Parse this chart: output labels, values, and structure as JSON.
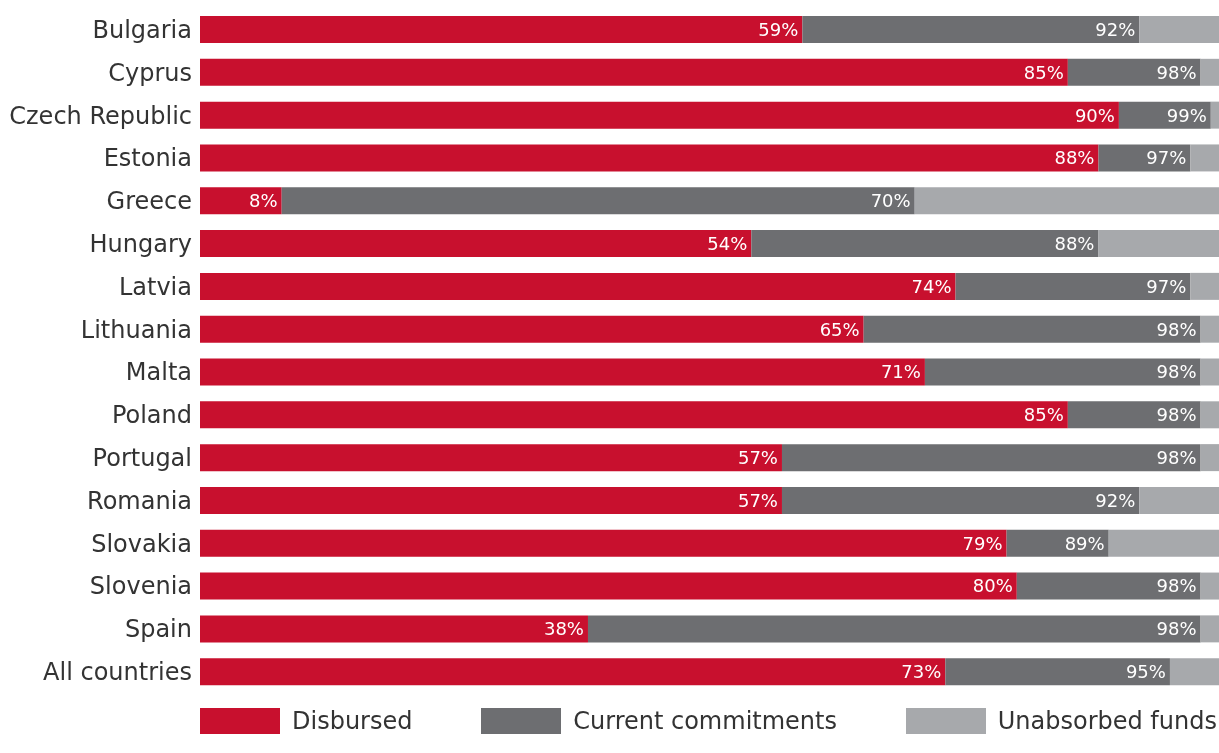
{
  "chart_data": {
    "type": "bar",
    "orientation": "horizontal",
    "stacked": true,
    "legend": "bottom",
    "categories": [
      "Bulgaria",
      "Cyprus",
      "Czech Republic",
      "Estonia",
      "Greece",
      "Hungary",
      "Latvia",
      "Lithuania",
      "Malta",
      "Poland",
      "Portugal",
      "Romania",
      "Slovakia",
      "Slovenia",
      "Spain",
      "All countries"
    ],
    "series": [
      {
        "name": "Disbursed",
        "color": "#c8102e",
        "values": [
          59,
          85,
          90,
          88,
          8,
          54,
          74,
          65,
          71,
          85,
          57,
          57,
          79,
          80,
          38,
          73
        ],
        "value_labels": [
          "59%",
          "85%",
          "90%",
          "88%",
          "8%",
          "54%",
          "74%",
          "65%",
          "71%",
          "85%",
          "57%",
          "57%",
          "79%",
          "80%",
          "38%",
          "73%"
        ]
      },
      {
        "name": "Current commitments",
        "color": "#6d6e71",
        "values": [
          33,
          13,
          9,
          9,
          62,
          34,
          23,
          33,
          27,
          13,
          41,
          35,
          10,
          18,
          60,
          22
        ]
      },
      {
        "name": "Unabsorbed funds",
        "color": "#a7a9ac",
        "values": [
          8,
          2,
          1,
          3,
          30,
          12,
          3,
          2,
          2,
          2,
          2,
          8,
          11,
          2,
          2,
          5
        ]
      }
    ],
    "annotations": [
      {
        "text": "92%",
        "x": 92,
        "y": "Bulgaria"
      },
      {
        "text": "98%",
        "x": 98,
        "y": "Cyprus"
      },
      {
        "text": "99%",
        "x": 99,
        "y": "Czech Republic"
      },
      {
        "text": "97%",
        "x": 97,
        "y": "Estonia"
      },
      {
        "text": "70%",
        "x": 70,
        "y": "Greece"
      },
      {
        "text": "88%",
        "x": 88,
        "y": "Hungary"
      },
      {
        "text": "97%",
        "x": 97,
        "y": "Latvia"
      },
      {
        "text": "98%",
        "x": 98,
        "y": "Lithuania"
      },
      {
        "text": "98%",
        "x": 98,
        "y": "Malta"
      },
      {
        "text": "98%",
        "x": 98,
        "y": "Poland"
      },
      {
        "text": "98%",
        "x": 98,
        "y": "Portugal"
      },
      {
        "text": "92%",
        "x": 92,
        "y": "Romania"
      },
      {
        "text": "89%",
        "x": 89,
        "y": "Slovakia"
      },
      {
        "text": "98%",
        "x": 98,
        "y": "Slovenia"
      },
      {
        "text": "98%",
        "x": 98,
        "y": "Spain"
      },
      {
        "text": "95%",
        "x": 95,
        "y": "All countries"
      }
    ]
  }
}
